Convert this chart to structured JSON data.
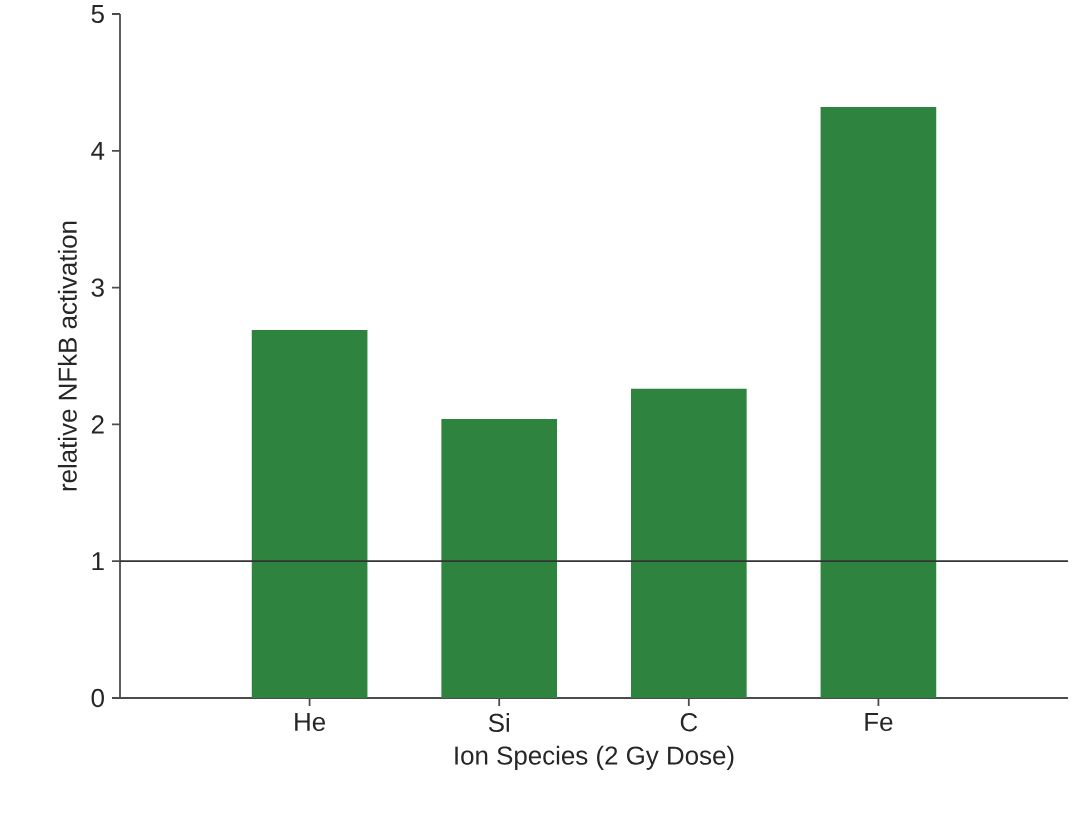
{
  "chart_data": {
    "type": "bar",
    "xlabel": "Ion Species (2 Gy Dose)",
    "ylabel": "relative NFkB activation",
    "categories": [
      "He",
      "Si",
      "C",
      "Fe"
    ],
    "values": [
      2.69,
      2.04,
      2.26,
      4.32
    ],
    "color": "#2e843f",
    "ylim": [
      0,
      5
    ],
    "yticks": [
      0,
      1,
      2,
      3,
      4,
      5
    ],
    "ref_lines": [
      {
        "axis": "y",
        "value": 1,
        "color": "#333333"
      }
    ]
  }
}
